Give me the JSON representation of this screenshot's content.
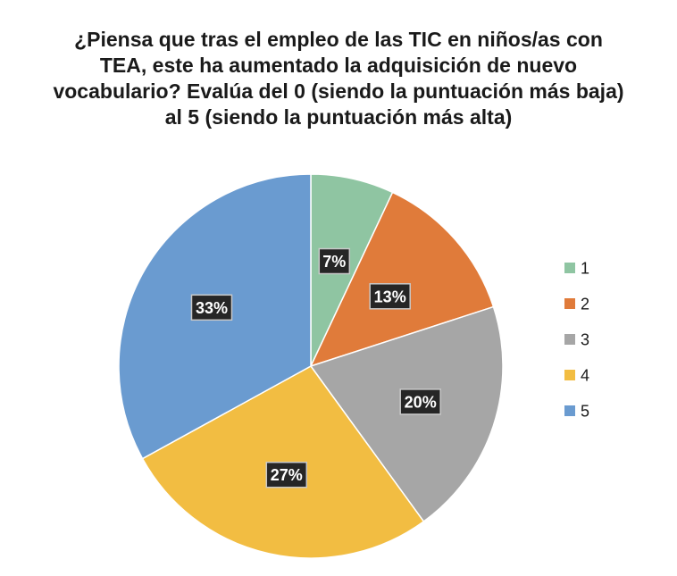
{
  "chart_data": {
    "type": "pie",
    "title_lines": [
      "¿Piensa que tras el empleo de las TIC en niños/as con",
      "TEA, este ha aumentado la adquisición de nuevo",
      "vocabulario? Evalúa del 0 (siendo la puntuación más baja)",
      "al 5 (siendo la puntuación más alta)"
    ],
    "categories": [
      "1",
      "2",
      "3",
      "4",
      "5"
    ],
    "values": [
      7,
      13,
      20,
      27,
      33
    ],
    "data_labels": [
      "7%",
      "13%",
      "20%",
      "27%",
      "33%"
    ],
    "colors": [
      "#8fc5a2",
      "#e07b3a",
      "#a6a6a6",
      "#f2bd42",
      "#6a9bd0"
    ],
    "legend": {
      "position": "right",
      "entries": [
        "1",
        "2",
        "3",
        "4",
        "5"
      ]
    }
  }
}
